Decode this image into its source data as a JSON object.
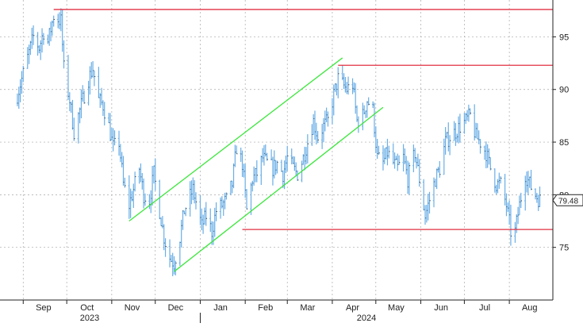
{
  "chart_data": {
    "type": "bar",
    "subtype": "ohlc",
    "title": "",
    "xlabel": "",
    "ylabel": "",
    "ylim": [
      70,
      98.5
    ],
    "y_ticks": [
      75,
      80,
      85,
      90,
      95
    ],
    "x_tick_labels": [
      "Sep",
      "Oct",
      "Nov",
      "Dec",
      "Jan",
      "Feb",
      "Mar",
      "Apr",
      "May",
      "Jun",
      "Jul",
      "Aug"
    ],
    "year_labels": [
      "2023",
      "2024"
    ],
    "last_value": "79.48",
    "grid": true,
    "y_axis_side": "right",
    "bar_color": "#6aaee6",
    "channel_color": "#3ce63c",
    "level_color": "#e03040",
    "price_path": [
      [
        "2023-08-28",
        89.5
      ],
      [
        "2023-09-01",
        91.5
      ],
      [
        "2023-09-05",
        93.5
      ],
      [
        "2023-09-08",
        95.0
      ],
      [
        "2023-09-12",
        94.0
      ],
      [
        "2023-09-15",
        95.5
      ],
      [
        "2023-09-18",
        94.5
      ],
      [
        "2023-09-22",
        97.0
      ],
      [
        "2023-09-27",
        96.5
      ],
      [
        "2023-09-29",
        92.0
      ],
      [
        "2023-10-03",
        89.0
      ],
      [
        "2023-10-06",
        86.0
      ],
      [
        "2023-10-09",
        87.5
      ],
      [
        "2023-10-13",
        89.5
      ],
      [
        "2023-10-16",
        91.0
      ],
      [
        "2023-10-19",
        92.0
      ],
      [
        "2023-10-23",
        89.0
      ],
      [
        "2023-10-26",
        88.5
      ],
      [
        "2023-10-30",
        86.5
      ],
      [
        "2023-11-02",
        84.5
      ],
      [
        "2023-11-06",
        85.0
      ],
      [
        "2023-11-09",
        81.0
      ],
      [
        "2023-11-13",
        79.0
      ],
      [
        "2023-11-16",
        80.5
      ],
      [
        "2023-11-20",
        82.5
      ],
      [
        "2023-11-23",
        80.0
      ],
      [
        "2023-11-27",
        79.5
      ],
      [
        "2023-11-30",
        82.0
      ],
      [
        "2023-12-04",
        78.5
      ],
      [
        "2023-12-07",
        76.0
      ],
      [
        "2023-12-11",
        74.0
      ],
      [
        "2023-12-14",
        73.5
      ],
      [
        "2023-12-18",
        76.0
      ],
      [
        "2023-12-21",
        78.5
      ],
      [
        "2023-12-27",
        80.5
      ],
      [
        "2024-01-02",
        77.0
      ],
      [
        "2024-01-05",
        78.0
      ],
      [
        "2024-01-09",
        76.5
      ],
      [
        "2024-01-12",
        78.5
      ],
      [
        "2024-01-16",
        79.0
      ],
      [
        "2024-01-19",
        79.5
      ],
      [
        "2024-01-23",
        81.0
      ],
      [
        "2024-01-26",
        84.5
      ],
      [
        "2024-01-30",
        83.0
      ],
      [
        "2024-02-02",
        78.5
      ],
      [
        "2024-02-06",
        81.5
      ],
      [
        "2024-02-09",
        82.0
      ],
      [
        "2024-02-13",
        83.5
      ],
      [
        "2024-02-16",
        83.0
      ],
      [
        "2024-02-20",
        82.5
      ],
      [
        "2024-02-23",
        83.0
      ],
      [
        "2024-02-27",
        82.0
      ],
      [
        "2024-03-01",
        83.5
      ],
      [
        "2024-03-05",
        82.5
      ],
      [
        "2024-03-08",
        82.0
      ],
      [
        "2024-03-12",
        83.5
      ],
      [
        "2024-03-15",
        85.0
      ],
      [
        "2024-03-19",
        87.0
      ],
      [
        "2024-03-22",
        85.5
      ],
      [
        "2024-03-26",
        86.5
      ],
      [
        "2024-03-29",
        87.0
      ],
      [
        "2024-04-02",
        89.5
      ],
      [
        "2024-04-05",
        91.0
      ],
      [
        "2024-04-08",
        90.5
      ],
      [
        "2024-04-11",
        90.0
      ],
      [
        "2024-04-15",
        90.5
      ],
      [
        "2024-04-18",
        87.0
      ],
      [
        "2024-04-22",
        87.5
      ],
      [
        "2024-04-25",
        89.0
      ],
      [
        "2024-04-29",
        88.0
      ],
      [
        "2024-05-02",
        83.5
      ],
      [
        "2024-05-06",
        83.0
      ],
      [
        "2024-05-09",
        84.0
      ],
      [
        "2024-05-13",
        83.0
      ],
      [
        "2024-05-16",
        82.5
      ],
      [
        "2024-05-20",
        83.5
      ],
      [
        "2024-05-23",
        81.5
      ],
      [
        "2024-05-28",
        84.0
      ],
      [
        "2024-05-31",
        81.5
      ],
      [
        "2024-06-04",
        78.0
      ],
      [
        "2024-06-07",
        79.5
      ],
      [
        "2024-06-11",
        81.5
      ],
      [
        "2024-06-14",
        82.5
      ],
      [
        "2024-06-18",
        85.0
      ],
      [
        "2024-06-21",
        85.5
      ],
      [
        "2024-06-25",
        86.0
      ],
      [
        "2024-06-28",
        86.5
      ],
      [
        "2024-07-02",
        87.0
      ],
      [
        "2024-07-05",
        87.5
      ],
      [
        "2024-07-09",
        85.5
      ],
      [
        "2024-07-12",
        85.0
      ],
      [
        "2024-07-16",
        84.0
      ],
      [
        "2024-07-19",
        82.5
      ],
      [
        "2024-07-23",
        81.0
      ],
      [
        "2024-07-26",
        81.0
      ],
      [
        "2024-07-30",
        79.0
      ],
      [
        "2024-08-02",
        76.5
      ],
      [
        "2024-08-05",
        76.5
      ],
      [
        "2024-08-08",
        79.0
      ],
      [
        "2024-08-12",
        82.0
      ],
      [
        "2024-08-15",
        81.0
      ],
      [
        "2024-08-19",
        80.0
      ],
      [
        "2024-08-22",
        79.48
      ]
    ],
    "annotations": [
      {
        "kind": "horizontal",
        "color": "#e03040",
        "y": 97.6,
        "x_start": "2023-09-22",
        "x_end": "2024-08-31"
      },
      {
        "kind": "horizontal",
        "color": "#e03040",
        "y": 92.3,
        "x_start": "2024-04-05",
        "x_end": "2024-08-31"
      },
      {
        "kind": "horizontal",
        "color": "#e03040",
        "y": 76.7,
        "x_start": "2024-01-30",
        "x_end": "2024-08-31"
      },
      {
        "kind": "trend",
        "color": "#3ce63c",
        "from": [
          "2023-11-13",
          77.5
        ],
        "to": [
          "2024-04-08",
          93.0
        ]
      },
      {
        "kind": "trend",
        "color": "#3ce63c",
        "from": [
          "2023-12-14",
          72.7
        ],
        "to": [
          "2024-05-06",
          88.3
        ]
      }
    ]
  }
}
